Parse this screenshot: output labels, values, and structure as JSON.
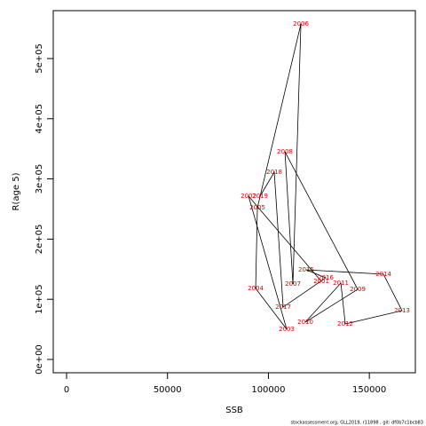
{
  "chart_data": {
    "type": "line",
    "xlabel": "SSB",
    "ylabel": "R(age 5)",
    "footer": "stockassessment.org, GLL2019, r11898 , git: df0b7c1bcb83",
    "labels": [
      "2001",
      "2002",
      "2003",
      "2004",
      "2005",
      "2006",
      "2007",
      "2008",
      "2009",
      "2010",
      "2011",
      "2012",
      "2013",
      "2014",
      "2015",
      "2016",
      "2017",
      "2018",
      "2019"
    ],
    "x": [
      126200,
      90150,
      109070,
      93670,
      94550,
      116100,
      112140,
      108200,
      144250,
      118300,
      135900,
      138100,
      166200,
      157000,
      118700,
      128400,
      107300,
      102900,
      95870
    ],
    "values": [
      129800,
      271400,
      50150,
      118000,
      252200,
      557500,
      125400,
      345100,
      116500,
      62000,
      126800,
      59000,
      81100,
      141600,
      149000,
      135700,
      87000,
      311200,
      271400
    ],
    "color": "#000000",
    "label_color": "#e00000",
    "xlim": [
      -6600,
      172800
    ],
    "ylim": [
      -22100,
      579600
    ],
    "xticks": [
      0,
      50000,
      100000,
      150000
    ],
    "yticks": [
      {
        "value": 0,
        "label": "0e+00"
      },
      {
        "value": 100000,
        "label": "1e+05"
      },
      {
        "value": 200000,
        "label": "2e+05"
      },
      {
        "value": 300000,
        "label": "3e+05"
      },
      {
        "value": 400000,
        "label": "4e+05"
      },
      {
        "value": 500000,
        "label": "5e+05"
      }
    ]
  }
}
